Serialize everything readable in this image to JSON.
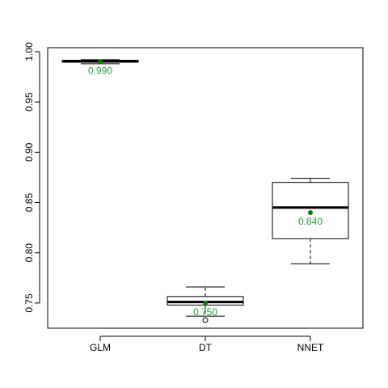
{
  "chart_data": {
    "type": "box",
    "ylim": [
      0.725,
      1.004
    ],
    "yticks": [
      0.75,
      0.8,
      0.85,
      0.9,
      0.95,
      1.0
    ],
    "ytick_labels": [
      "0.75",
      "0.80",
      "0.85",
      "0.90",
      "0.95",
      "1.00"
    ],
    "categories": [
      "GLM",
      "DT",
      "NNET"
    ],
    "boxes": [
      {
        "name": "GLM",
        "min": 0.988,
        "q1": 0.9895,
        "median": 0.9905,
        "q3": 0.9915,
        "max": 0.992,
        "mean": 0.99,
        "mean_label": "0.990",
        "outliers": []
      },
      {
        "name": "DT",
        "min": 0.737,
        "q1": 0.748,
        "median": 0.751,
        "q3": 0.7565,
        "max": 0.766,
        "mean": 0.75,
        "mean_label": "0.750",
        "outliers": [
          0.733
        ]
      },
      {
        "name": "NNET",
        "min": 0.789,
        "q1": 0.814,
        "median": 0.845,
        "q3": 0.87,
        "max": 0.874,
        "mean": 0.84,
        "mean_label": "0.840",
        "outliers": []
      }
    ],
    "mean_color": "#008000",
    "mean_label_color": "#22a038"
  }
}
